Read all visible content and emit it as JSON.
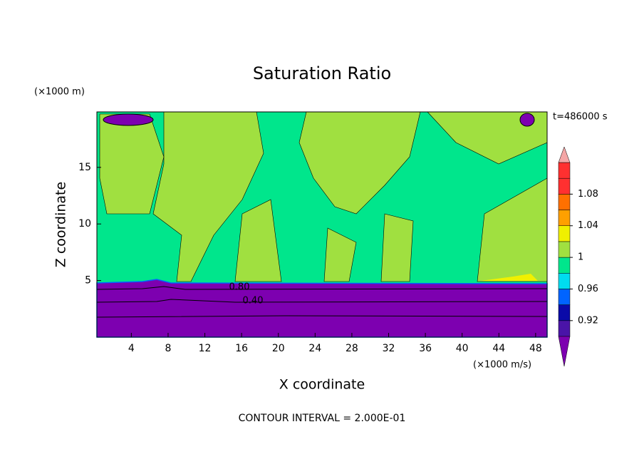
{
  "chart_data": {
    "type": "contour",
    "title": "Saturation Ratio",
    "x_label": "X coordinate",
    "y_label": "Z coordinate",
    "x_unit": "(×1000 m/s)",
    "y_unit": "(×1000 m)",
    "time_label": "t=486000 s",
    "footer": "CONTOUR INTERVAL = 2.000E-01",
    "xlim": [
      0.25,
      49.25
    ],
    "xticks": [
      4,
      8,
      12,
      16,
      20,
      24,
      28,
      32,
      36,
      40,
      44,
      48
    ],
    "ylim": [
      0,
      19.9
    ],
    "yticks": [
      5,
      10,
      15
    ],
    "contour_labels": [
      {
        "value": 0.8,
        "label": "0.80"
      },
      {
        "value": 0.4,
        "label": "0.40"
      }
    ],
    "colorbar": {
      "clim": [
        0.9,
        1.12
      ],
      "ticks": [
        0.92,
        0.96,
        1,
        1.04,
        1.08
      ],
      "colors": [
        "#4a14a8",
        "#0a0aa8",
        "#0064ff",
        "#00dcf0",
        "#00e68c",
        "#a0e040",
        "#f0f000",
        "#ffa000",
        "#ff7000",
        "#ff3030",
        "#ff3030"
      ],
      "under_color": "#7d00b0",
      "over_color": "#f4a6a6"
    }
  }
}
